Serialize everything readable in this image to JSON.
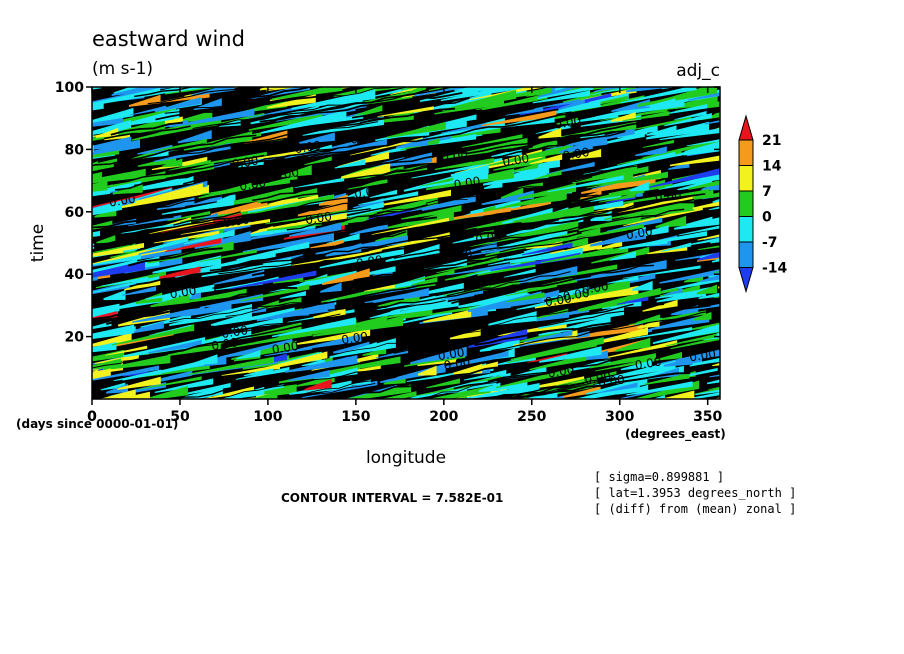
{
  "chart_data": {
    "type": "heatmap",
    "title": "eastward wind",
    "units": "(m s-1)",
    "dataset_label": "adj_c",
    "xlabel": "longitude",
    "xunits": "(degrees_east)",
    "ylabel": "time",
    "yunits": "(days since 0000-01-01)",
    "x_ticks": [
      0,
      50,
      100,
      150,
      200,
      250,
      300,
      350
    ],
    "y_ticks": [
      20,
      40,
      60,
      80,
      100
    ],
    "y_zero_label": "0",
    "xlim": [
      0,
      357
    ],
    "ylim": [
      0,
      100
    ],
    "colorbar": {
      "labels": [
        "21",
        "14",
        "7",
        "0",
        "-7",
        "-14"
      ],
      "colors": [
        "#e8141e",
        "#f59a1a",
        "#f2f21e",
        "#22cc1e",
        "#1ee8f2",
        "#1e96f0",
        "#1e3cf0"
      ]
    },
    "contour_label": "0.00",
    "contour_interval_text": "CONTOUR INTERVAL = 7.582E-01",
    "annotations": [
      "[ sigma=0.899881 ]",
      "[ lat=1.3953 degrees_north ]",
      "[ (diff) from (mean) zonal ]"
    ]
  }
}
